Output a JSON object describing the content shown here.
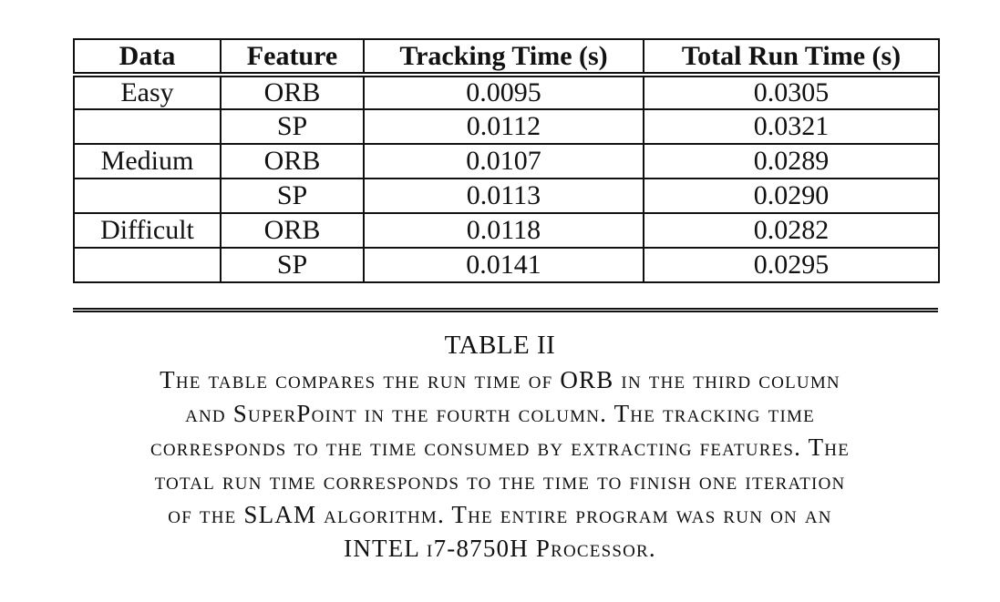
{
  "table": {
    "headers": [
      "Data",
      "Feature",
      "Tracking Time (s)",
      "Total Run Time (s)"
    ],
    "rows": [
      [
        "Easy",
        "ORB",
        "0.0095",
        "0.0305"
      ],
      [
        "",
        "SP",
        "0.0112",
        "0.0321"
      ],
      [
        "Medium",
        "ORB",
        "0.0107",
        "0.0289"
      ],
      [
        "",
        "SP",
        "0.0113",
        "0.0290"
      ],
      [
        "Difficult",
        "ORB",
        "0.0118",
        "0.0282"
      ],
      [
        "",
        "SP",
        "0.0141",
        "0.0295"
      ]
    ]
  },
  "caption": {
    "label": "TABLE II",
    "lines": [
      "The table compares the run time of ORB in the third column",
      "and SuperPoint in the fourth column. The tracking time",
      "corresponds to the time consumed by extracting features. The",
      "total run time corresponds to the time to finish one iteration",
      "of the SLAM algorithm. The entire program was run on an",
      "INTEL i7-8750H Processor."
    ]
  }
}
